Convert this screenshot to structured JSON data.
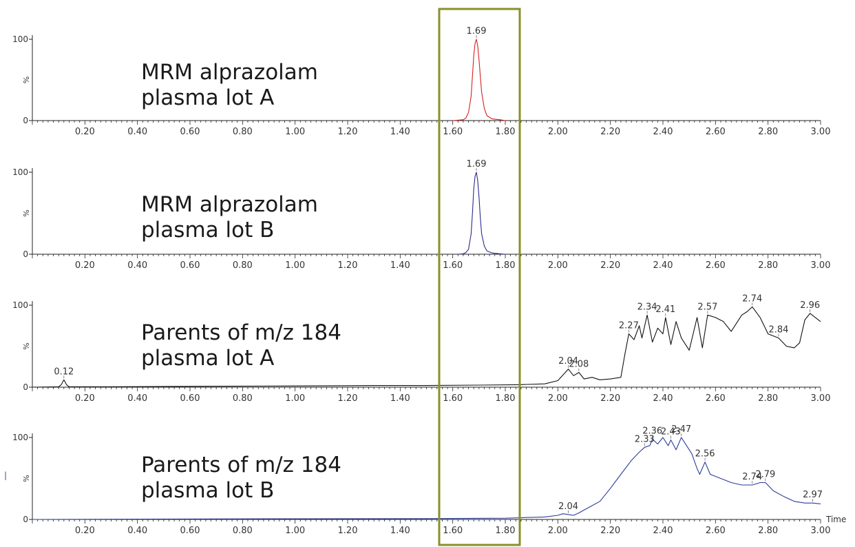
{
  "colors": {
    "highlight_box": "#8a8f2a",
    "axis": "#222222"
  },
  "time_axis_label": "Time",
  "stray_mark": "|",
  "chart_data": [
    {
      "type": "line",
      "title_lines": [
        "MRM alprazolam",
        "plasma lot A"
      ],
      "color": "#d42020",
      "xlim": [
        0,
        3.0
      ],
      "ylim": [
        0,
        100
      ],
      "y_ticks": [
        "100",
        "0"
      ],
      "y_unit": "%",
      "x_ticks": [
        "0.20",
        "0.40",
        "0.60",
        "0.80",
        "1.00",
        "1.20",
        "1.40",
        "1.60",
        "1.80",
        "2.00",
        "2.20",
        "2.40",
        "2.60",
        "2.80",
        "3.00"
      ],
      "x": [
        1.6,
        1.62,
        1.64,
        1.65,
        1.66,
        1.67,
        1.675,
        1.68,
        1.685,
        1.69,
        1.695,
        1.7,
        1.705,
        1.71,
        1.72,
        1.73,
        1.75,
        1.78,
        1.8
      ],
      "y": [
        0,
        0.5,
        1,
        3,
        10,
        30,
        55,
        80,
        95,
        100,
        92,
        75,
        55,
        35,
        15,
        6,
        2,
        1,
        0
      ],
      "peak_labels": [
        {
          "x": 1.69,
          "y": 100,
          "label": "1.69"
        }
      ]
    },
    {
      "type": "line",
      "title_lines": [
        "MRM alprazolam",
        "plasma lot B"
      ],
      "color": "#2a2a8a",
      "xlim": [
        0,
        3.0
      ],
      "ylim": [
        0,
        100
      ],
      "y_ticks": [
        "100",
        "0"
      ],
      "y_unit": "%",
      "x_ticks": [
        "0.20",
        "0.40",
        "0.60",
        "0.80",
        "1.00",
        "1.20",
        "1.40",
        "1.60",
        "1.80",
        "2.00",
        "2.20",
        "2.40",
        "2.60",
        "2.80",
        "3.00"
      ],
      "x": [
        1.62,
        1.64,
        1.65,
        1.66,
        1.67,
        1.675,
        1.68,
        1.685,
        1.69,
        1.695,
        1.7,
        1.705,
        1.71,
        1.72,
        1.73,
        1.75,
        1.78,
        1.8
      ],
      "y": [
        0,
        0.5,
        2,
        6,
        25,
        50,
        80,
        95,
        100,
        90,
        70,
        45,
        25,
        10,
        4,
        1.5,
        0.5,
        0
      ],
      "peak_labels": [
        {
          "x": 1.69,
          "y": 100,
          "label": "1.69"
        }
      ]
    },
    {
      "type": "line",
      "title_lines": [
        "Parents of m/z 184",
        "plasma lot A"
      ],
      "color": "#111111",
      "xlim": [
        0,
        3.0
      ],
      "ylim": [
        0,
        100
      ],
      "y_ticks": [
        "100",
        "0"
      ],
      "y_unit": "%",
      "x_ticks": [
        "0.20",
        "0.40",
        "0.60",
        "0.80",
        "1.00",
        "1.20",
        "1.40",
        "1.60",
        "1.80",
        "2.00",
        "2.20",
        "2.40",
        "2.60",
        "2.80",
        "3.00"
      ],
      "x": [
        0.0,
        0.1,
        0.11,
        0.12,
        0.13,
        0.14,
        0.3,
        0.6,
        1.0,
        1.3,
        1.5,
        1.7,
        1.85,
        1.95,
        2.0,
        2.02,
        2.04,
        2.06,
        2.08,
        2.1,
        2.13,
        2.16,
        2.2,
        2.24,
        2.255,
        2.27,
        2.29,
        2.31,
        2.32,
        2.34,
        2.36,
        2.38,
        2.4,
        2.41,
        2.43,
        2.45,
        2.47,
        2.5,
        2.53,
        2.55,
        2.57,
        2.6,
        2.63,
        2.66,
        2.7,
        2.72,
        2.74,
        2.77,
        2.8,
        2.84,
        2.87,
        2.9,
        2.92,
        2.94,
        2.96,
        2.98,
        3.0
      ],
      "y": [
        0,
        0.5,
        3,
        9,
        3,
        0.5,
        0.5,
        1,
        1.5,
        2,
        2,
        2.5,
        3,
        4,
        8,
        15,
        22,
        14,
        18,
        10,
        12,
        9,
        10,
        12,
        40,
        65,
        58,
        75,
        60,
        88,
        55,
        72,
        65,
        85,
        52,
        80,
        60,
        45,
        85,
        48,
        88,
        85,
        80,
        68,
        88,
        92,
        98,
        85,
        65,
        60,
        50,
        48,
        54,
        82,
        90,
        85,
        80
      ],
      "peak_labels": [
        {
          "x": 0.12,
          "y": 9,
          "label": "0.12"
        },
        {
          "x": 2.04,
          "y": 22,
          "label": "2.04"
        },
        {
          "x": 2.08,
          "y": 18,
          "label": "2.08"
        },
        {
          "x": 2.27,
          "y": 65,
          "label": "2.27"
        },
        {
          "x": 2.34,
          "y": 88,
          "label": "2.34"
        },
        {
          "x": 2.41,
          "y": 85,
          "label": "2.41"
        },
        {
          "x": 2.57,
          "y": 88,
          "label": "2.57"
        },
        {
          "x": 2.74,
          "y": 98,
          "label": "2.74"
        },
        {
          "x": 2.84,
          "y": 60,
          "label": "2.84"
        },
        {
          "x": 2.96,
          "y": 90,
          "label": "2.96"
        }
      ]
    },
    {
      "type": "line",
      "title_lines": [
        "Parents of m/z 184",
        "plasma lot B"
      ],
      "color": "#2a3a9a",
      "xlim": [
        0,
        3.0
      ],
      "ylim": [
        0,
        100
      ],
      "y_ticks": [
        "100",
        "0"
      ],
      "y_unit": "%",
      "x_ticks": [
        "0.20",
        "0.40",
        "0.60",
        "0.80",
        "1.00",
        "1.20",
        "1.40",
        "1.60",
        "1.80",
        "2.00",
        "2.20",
        "2.40",
        "2.60",
        "2.80",
        "3.00"
      ],
      "x": [
        0.0,
        0.5,
        1.0,
        1.5,
        1.8,
        1.95,
        2.0,
        2.02,
        2.04,
        2.06,
        2.08,
        2.12,
        2.16,
        2.2,
        2.24,
        2.28,
        2.31,
        2.33,
        2.35,
        2.36,
        2.38,
        2.4,
        2.42,
        2.43,
        2.45,
        2.47,
        2.49,
        2.51,
        2.53,
        2.54,
        2.56,
        2.58,
        2.62,
        2.66,
        2.7,
        2.74,
        2.77,
        2.79,
        2.82,
        2.86,
        2.9,
        2.94,
        2.97,
        3.0
      ],
      "y": [
        0,
        0.5,
        0.8,
        1,
        1.5,
        3,
        5,
        7,
        6,
        5,
        8,
        15,
        22,
        38,
        55,
        72,
        82,
        88,
        90,
        98,
        92,
        100,
        90,
        97,
        85,
        100,
        90,
        80,
        62,
        55,
        70,
        55,
        50,
        45,
        42,
        42,
        45,
        45,
        35,
        28,
        22,
        20,
        20,
        19
      ],
      "peak_labels": [
        {
          "x": 2.04,
          "y": 6,
          "label": "2.04"
        },
        {
          "x": 2.33,
          "y": 88,
          "label": "2.33"
        },
        {
          "x": 2.36,
          "y": 98,
          "label": "2.36"
        },
        {
          "x": 2.43,
          "y": 97,
          "label": "2.43"
        },
        {
          "x": 2.47,
          "y": 100,
          "label": "2.47"
        },
        {
          "x": 2.56,
          "y": 70,
          "label": "2.56"
        },
        {
          "x": 2.74,
          "y": 42,
          "label": "2.74"
        },
        {
          "x": 2.79,
          "y": 45,
          "label": "2.79"
        },
        {
          "x": 2.97,
          "y": 20,
          "label": "2.97"
        }
      ]
    }
  ]
}
